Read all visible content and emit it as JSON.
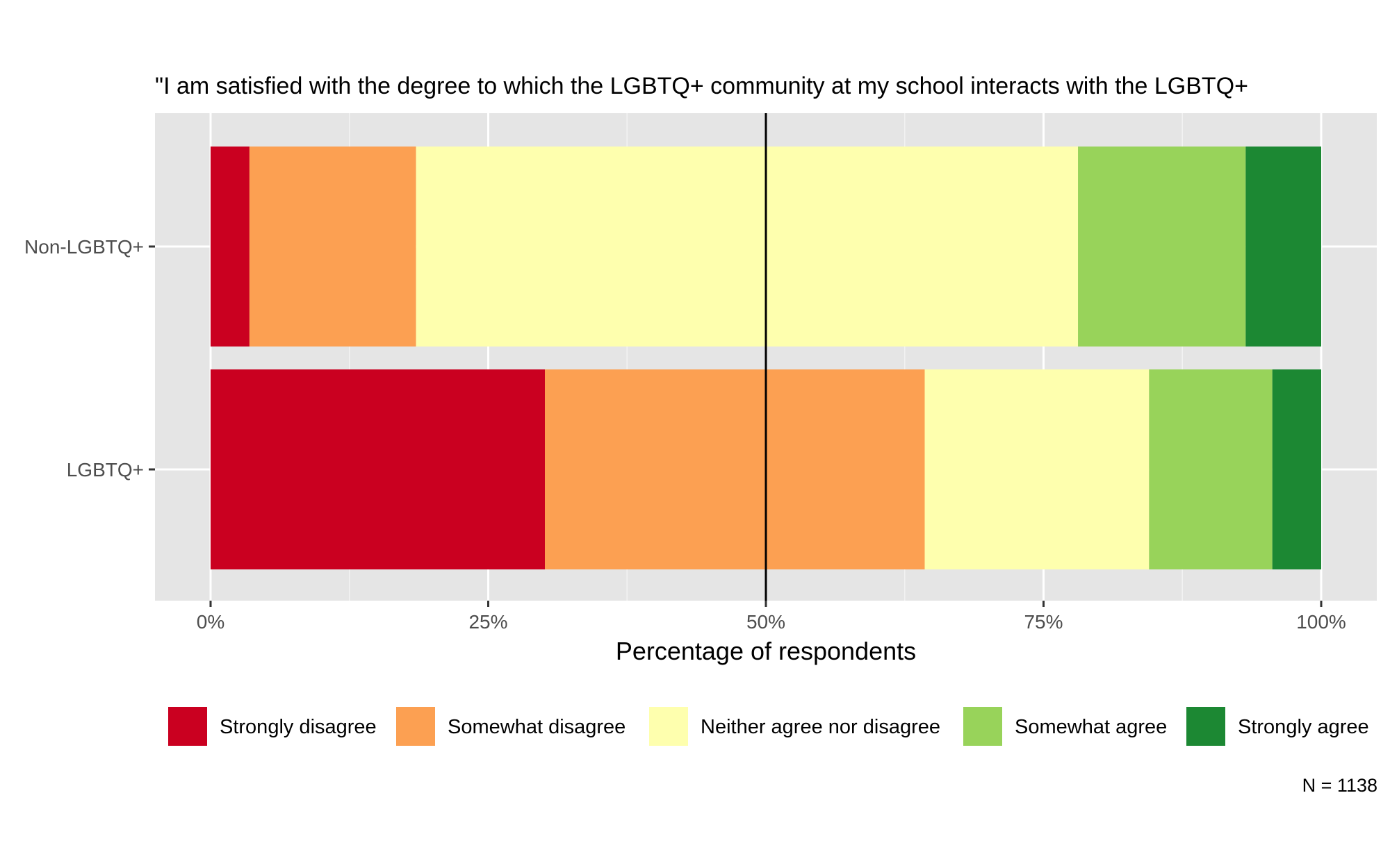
{
  "chart_data": {
    "type": "bar",
    "orientation": "horizontal",
    "stacked": "percent",
    "title": "\"I am satisfied with the degree to which the LGBTQ+ community at my school interacts with the LGBTQ+",
    "xlabel": "Percentage of respondents",
    "ylabel": "",
    "xlim": [
      0,
      100
    ],
    "x_ticks": [
      0,
      25,
      50,
      75,
      100
    ],
    "x_tick_labels": [
      "0%",
      "25%",
      "50%",
      "75%",
      "100%"
    ],
    "midline": 50,
    "categories": [
      "Non-LGBTQ+",
      "LGBTQ+"
    ],
    "series": [
      {
        "name": "Strongly disagree",
        "color": "#ca0020",
        "values": [
          3.5,
          30.1
        ]
      },
      {
        "name": "Somewhat disagree",
        "color": "#fca052",
        "values": [
          15.0,
          34.2
        ]
      },
      {
        "name": "Neither agree nor disagree",
        "color": "#feffae",
        "values": [
          59.6,
          20.2
        ]
      },
      {
        "name": "Somewhat agree",
        "color": "#98d35a",
        "values": [
          15.1,
          11.1
        ]
      },
      {
        "name": "Strongly agree",
        "color": "#1c8833",
        "values": [
          6.8,
          4.4
        ]
      }
    ],
    "legend_position": "bottom",
    "grid": true,
    "caption": "N = 1138"
  }
}
